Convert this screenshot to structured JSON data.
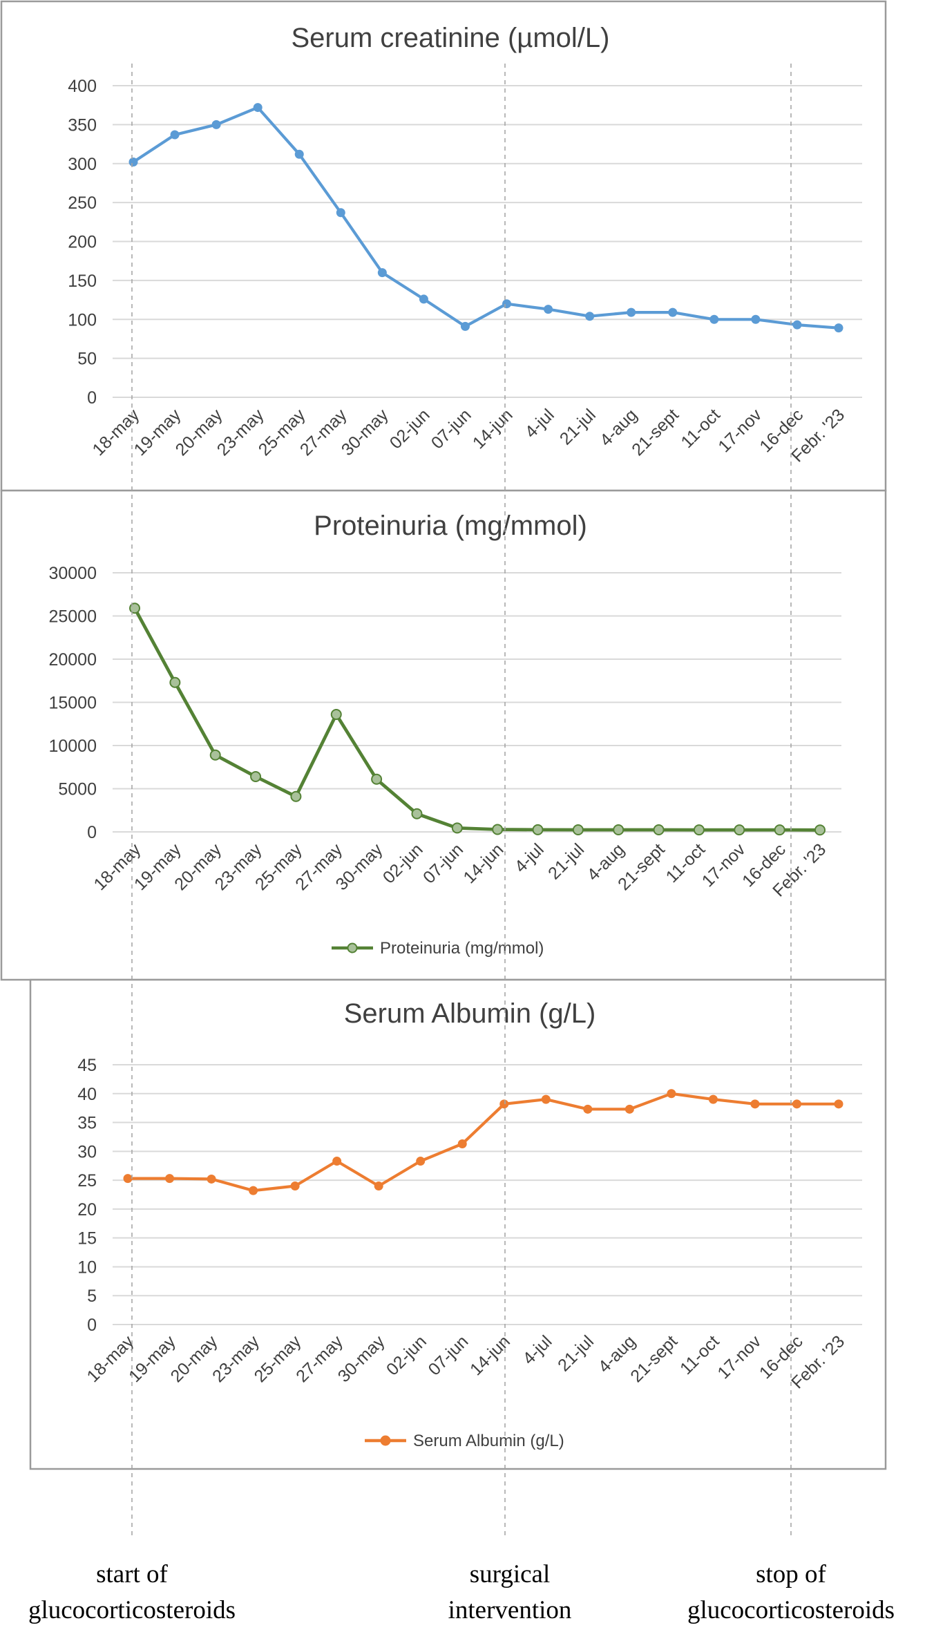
{
  "chart_data": [
    {
      "type": "line",
      "title": "Serum creatinine (µmol/L)",
      "categories": [
        "18-may",
        "19-may",
        "20-may",
        "23-may",
        "25-may",
        "27-may",
        "30-may",
        "02-jun",
        "07-jun",
        "14-jun",
        "4-jul",
        "21-jul",
        "4-aug",
        "21-sept",
        "11-oct",
        "17-nov",
        "16-dec",
        "Febr. '23"
      ],
      "series": [
        {
          "values": [
            302,
            337,
            350,
            372,
            312,
            237,
            160,
            126,
            91,
            120,
            113,
            104,
            109,
            109,
            100,
            100,
            93,
            89
          ],
          "color": "#5b9bd5"
        }
      ],
      "ylim": [
        0,
        400
      ],
      "yticks": [
        0,
        50,
        100,
        150,
        200,
        250,
        300,
        350,
        400
      ],
      "grid": true,
      "legend": "none"
    },
    {
      "type": "line",
      "title": "Proteinuria (mg/mmol)",
      "categories": [
        "18-may",
        "19-may",
        "20-may",
        "23-may",
        "25-may",
        "27-may",
        "30-may",
        "02-jun",
        "07-jun",
        "14-jun",
        "4-jul",
        "21-jul",
        "4-aug",
        "21-sept",
        "11-oct",
        "17-nov",
        "16-dec",
        "Febr. '23"
      ],
      "series": [
        {
          "name": "Proteinuria (mg/mmol)",
          "values": [
            25900,
            17300,
            8900,
            6400,
            4100,
            13600,
            6100,
            2100,
            450,
            280,
            250,
            240,
            240,
            240,
            230,
            230,
            230,
            220
          ],
          "color": "#548235"
        }
      ],
      "ylim": [
        0,
        30000
      ],
      "yticks": [
        0,
        5000,
        10000,
        15000,
        20000,
        25000,
        30000
      ],
      "grid": true,
      "legend": "bottom"
    },
    {
      "type": "line",
      "title": "Serum Albumin (g/L)",
      "categories": [
        "18-may",
        "19-may",
        "20-may",
        "23-may",
        "25-may",
        "27-may",
        "30-may",
        "02-jun",
        "07-jun",
        "14-jun",
        "4-jul",
        "21-jul",
        "4-aug",
        "21-sept",
        "11-oct",
        "17-nov",
        "16-dec",
        "Febr. '23"
      ],
      "series": [
        {
          "name": "Serum Albumin (g/L)",
          "values": [
            25.3,
            25.3,
            25.2,
            23.2,
            24.0,
            28.3,
            24.0,
            28.3,
            31.3,
            38.2,
            39.0,
            37.3,
            37.3,
            40.0,
            39.0,
            38.2,
            38.2,
            38.2
          ],
          "color": "#ed7d31"
        }
      ],
      "ylim": [
        0,
        45
      ],
      "yticks": [
        0,
        5,
        10,
        15,
        20,
        25,
        30,
        35,
        40,
        45
      ],
      "grid": true,
      "legend": "bottom"
    }
  ],
  "annotations": [
    {
      "line1": "start of",
      "line2": "glucocorticosteroids"
    },
    {
      "line1": "surgical",
      "line2": "intervention"
    },
    {
      "line1": "stop of",
      "line2": "glucocorticosteroids"
    }
  ]
}
